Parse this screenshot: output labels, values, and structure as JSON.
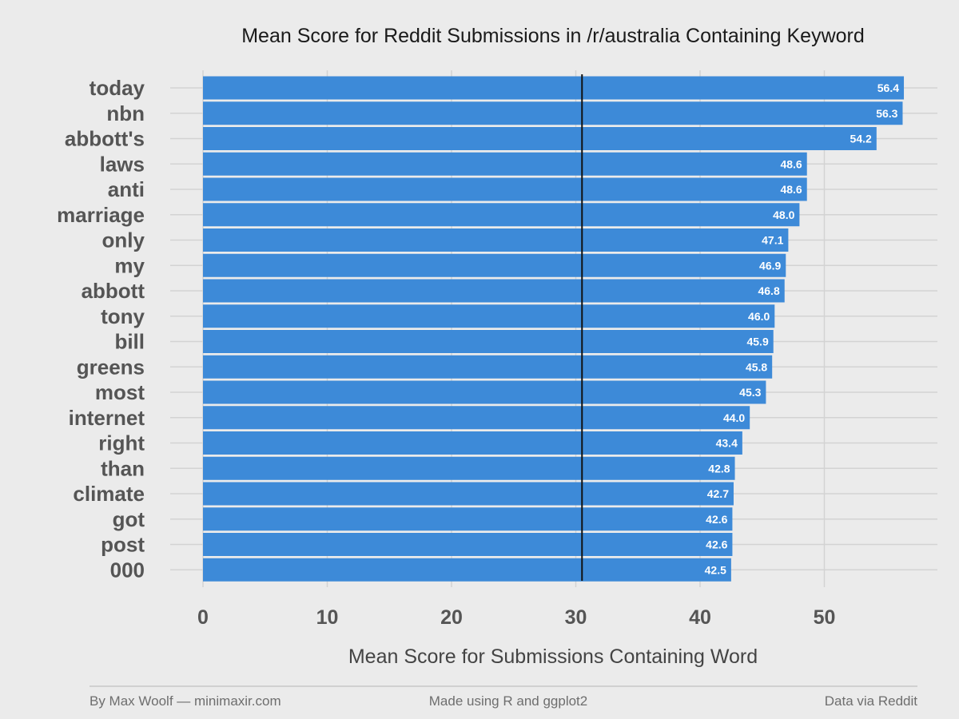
{
  "chart_data": {
    "type": "bar",
    "orientation": "horizontal",
    "title": "Mean Score for Reddit Submissions in /r/australia Containing Keyword",
    "xlabel": "Mean Score for Submissions Containing Word",
    "ylabel": "",
    "categories": [
      "today",
      "nbn",
      "abbott's",
      "laws",
      "anti",
      "marriage",
      "only",
      "my",
      "abbott",
      "tony",
      "bill",
      "greens",
      "most",
      "internet",
      "right",
      "than",
      "climate",
      "got",
      "post",
      "000"
    ],
    "values": [
      56.4,
      56.3,
      54.2,
      48.6,
      48.6,
      48.0,
      47.1,
      46.9,
      46.8,
      46.0,
      45.9,
      45.8,
      45.3,
      44.0,
      43.4,
      42.8,
      42.7,
      42.6,
      42.6,
      42.5
    ],
    "value_labels": [
      "56.4",
      "56.3",
      "54.2",
      "48.6",
      "48.6",
      "48.0",
      "47.1",
      "46.9",
      "46.8",
      "46.0",
      "45.9",
      "45.8",
      "45.3",
      "44.0",
      "43.4",
      "42.8",
      "42.7",
      "42.6",
      "42.6",
      "42.5"
    ],
    "xlim": [
      0,
      57.5
    ],
    "x_ticks": [
      0,
      10,
      20,
      30,
      40,
      50
    ],
    "x_tick_labels": [
      "0",
      "10",
      "20",
      "30",
      "40",
      "50"
    ],
    "reference_line": 30.5,
    "grid": true,
    "legend": "none",
    "bar_color": "#3d8ad8",
    "reference_line_color": "#111111"
  },
  "footer": {
    "left": "By Max Woolf — minimaxir.com",
    "center": "Made using R and ggplot2",
    "right": "Data via Reddit"
  },
  "colors": {
    "background": "#ebebeb",
    "gridline": "#d3d3d3",
    "footer_rule": "#b5b5b5"
  }
}
